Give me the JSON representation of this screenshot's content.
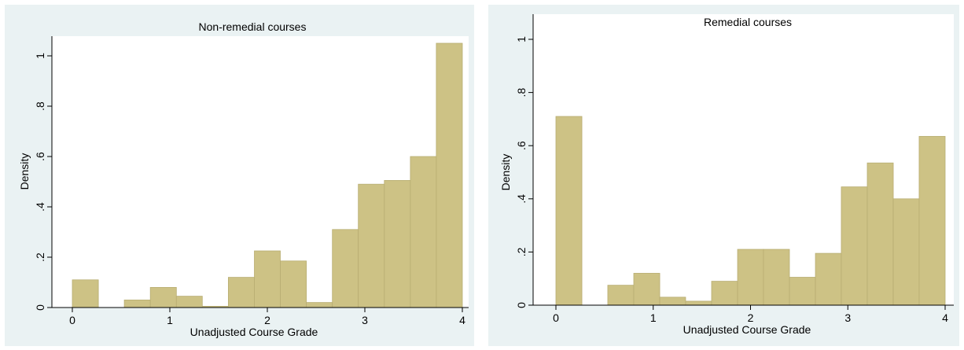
{
  "chart_data": [
    {
      "type": "bar",
      "title": "Non-remedial courses",
      "xlabel": "Unadjusted Course Grade",
      "ylabel": "Density",
      "xlim": [
        0,
        4
      ],
      "ylim": [
        0,
        1.05
      ],
      "x_ticks": [
        0,
        1,
        2,
        3,
        4
      ],
      "x_tick_labels": [
        "0",
        "1",
        "2",
        "3",
        "4"
      ],
      "y_ticks": [
        0,
        0.2,
        0.4,
        0.6,
        0.8,
        1
      ],
      "y_tick_labels": [
        "0",
        ".2",
        ".4",
        ".6",
        ".8",
        "1"
      ],
      "bin_width": 0.267,
      "bins": [
        {
          "x0": 0.0,
          "x1": 0.267,
          "y": 0.11
        },
        {
          "x0": 0.533,
          "x1": 0.8,
          "y": 0.03
        },
        {
          "x0": 0.8,
          "x1": 1.067,
          "y": 0.08
        },
        {
          "x0": 1.067,
          "x1": 1.333,
          "y": 0.045
        },
        {
          "x0": 1.333,
          "x1": 1.6,
          "y": 0.005
        },
        {
          "x0": 1.6,
          "x1": 1.867,
          "y": 0.12
        },
        {
          "x0": 1.867,
          "x1": 2.133,
          "y": 0.225
        },
        {
          "x0": 2.133,
          "x1": 2.4,
          "y": 0.185
        },
        {
          "x0": 2.4,
          "x1": 2.667,
          "y": 0.02
        },
        {
          "x0": 2.667,
          "x1": 2.933,
          "y": 0.31
        },
        {
          "x0": 2.933,
          "x1": 3.2,
          "y": 0.49
        },
        {
          "x0": 3.2,
          "x1": 3.467,
          "y": 0.505
        },
        {
          "x0": 3.467,
          "x1": 3.733,
          "y": 0.6
        },
        {
          "x0": 3.733,
          "x1": 4.0,
          "y": 1.05
        }
      ],
      "bar_color": "#cdc285",
      "bar_edge_color": "#b8ad72",
      "background_color": "#eaf2f3",
      "plot_background": "#ffffff",
      "grid": false
    },
    {
      "type": "bar",
      "title": "Remedial courses",
      "xlabel": "Unadjusted Course Grade",
      "ylabel": "Density",
      "xlim": [
        0,
        4
      ],
      "ylim": [
        0,
        1.02
      ],
      "x_ticks": [
        0,
        1,
        2,
        3,
        4
      ],
      "x_tick_labels": [
        "0",
        "1",
        "2",
        "3",
        "4"
      ],
      "y_ticks": [
        0,
        0.2,
        0.4,
        0.6,
        0.8,
        1
      ],
      "y_tick_labels": [
        "0",
        ".2",
        ".4",
        ".6",
        ".8",
        "1"
      ],
      "bin_width": 0.267,
      "bins": [
        {
          "x0": 0.0,
          "x1": 0.267,
          "y": 0.71
        },
        {
          "x0": 0.533,
          "x1": 0.8,
          "y": 0.075
        },
        {
          "x0": 0.8,
          "x1": 1.067,
          "y": 0.12
        },
        {
          "x0": 1.067,
          "x1": 1.333,
          "y": 0.03
        },
        {
          "x0": 1.333,
          "x1": 1.6,
          "y": 0.015
        },
        {
          "x0": 1.6,
          "x1": 1.867,
          "y": 0.09
        },
        {
          "x0": 1.867,
          "x1": 2.133,
          "y": 0.21
        },
        {
          "x0": 2.133,
          "x1": 2.4,
          "y": 0.21
        },
        {
          "x0": 2.4,
          "x1": 2.667,
          "y": 0.105
        },
        {
          "x0": 2.667,
          "x1": 2.933,
          "y": 0.195
        },
        {
          "x0": 2.933,
          "x1": 3.2,
          "y": 0.445
        },
        {
          "x0": 3.2,
          "x1": 3.467,
          "y": 0.535
        },
        {
          "x0": 3.467,
          "x1": 3.733,
          "y": 0.4
        },
        {
          "x0": 3.733,
          "x1": 4.0,
          "y": 0.635
        }
      ],
      "bar_color": "#cdc285",
      "bar_edge_color": "#b8ad72",
      "background_color": "#eaf2f3",
      "plot_background": "#ffffff",
      "grid": false
    }
  ]
}
